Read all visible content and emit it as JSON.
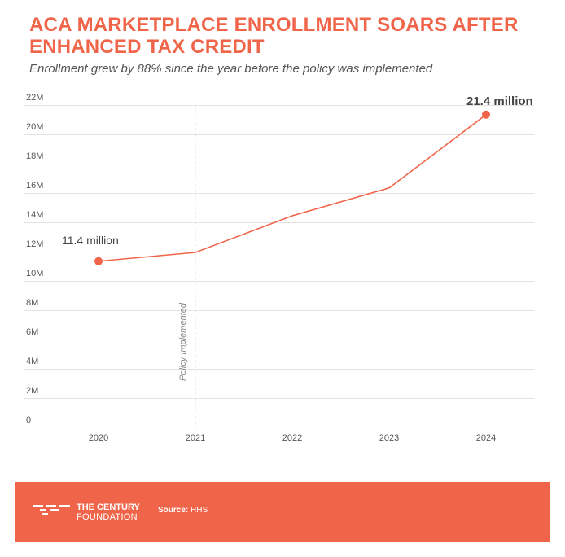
{
  "header": {
    "title": "ACA MARKETPLACE ENROLLMENT SOARS AFTER ENHANCED TAX CREDIT",
    "subtitle": "Enrollment grew by 88% since the year before the policy was implemented"
  },
  "chart_data": {
    "type": "line",
    "x": [
      "2020",
      "2021",
      "2022",
      "2023",
      "2024"
    ],
    "series": [
      {
        "values": [
          11.4,
          12.0,
          14.5,
          16.4,
          21.4
        ]
      }
    ],
    "ylim": [
      0,
      22
    ],
    "yticks": [
      {
        "value": 0,
        "label": "0"
      },
      {
        "value": 2,
        "label": "2M"
      },
      {
        "value": 4,
        "label": "4M"
      },
      {
        "value": 6,
        "label": "6M"
      },
      {
        "value": 8,
        "label": "8M"
      },
      {
        "value": 10,
        "label": "10M"
      },
      {
        "value": 12,
        "label": "12M"
      },
      {
        "value": 14,
        "label": "14M"
      },
      {
        "value": 16,
        "label": "16M"
      },
      {
        "value": 18,
        "label": "18M"
      },
      {
        "value": 20,
        "label": "20M"
      },
      {
        "value": 22,
        "label": "22M"
      }
    ],
    "grid": true,
    "line_color": "#f0654a",
    "annotations": [
      {
        "x": "2020",
        "text": "11.4 million",
        "bold": false
      },
      {
        "x": "2024",
        "text": "21.4 million",
        "bold": true
      }
    ],
    "reference_line": {
      "x": "2021",
      "label": "Policy Implemented"
    }
  },
  "footer": {
    "logo_line1": "THE CENTURY",
    "logo_line2": "FOUNDATION",
    "source_label": "Source:",
    "source_value": "HHS",
    "background": "#f0654a"
  }
}
